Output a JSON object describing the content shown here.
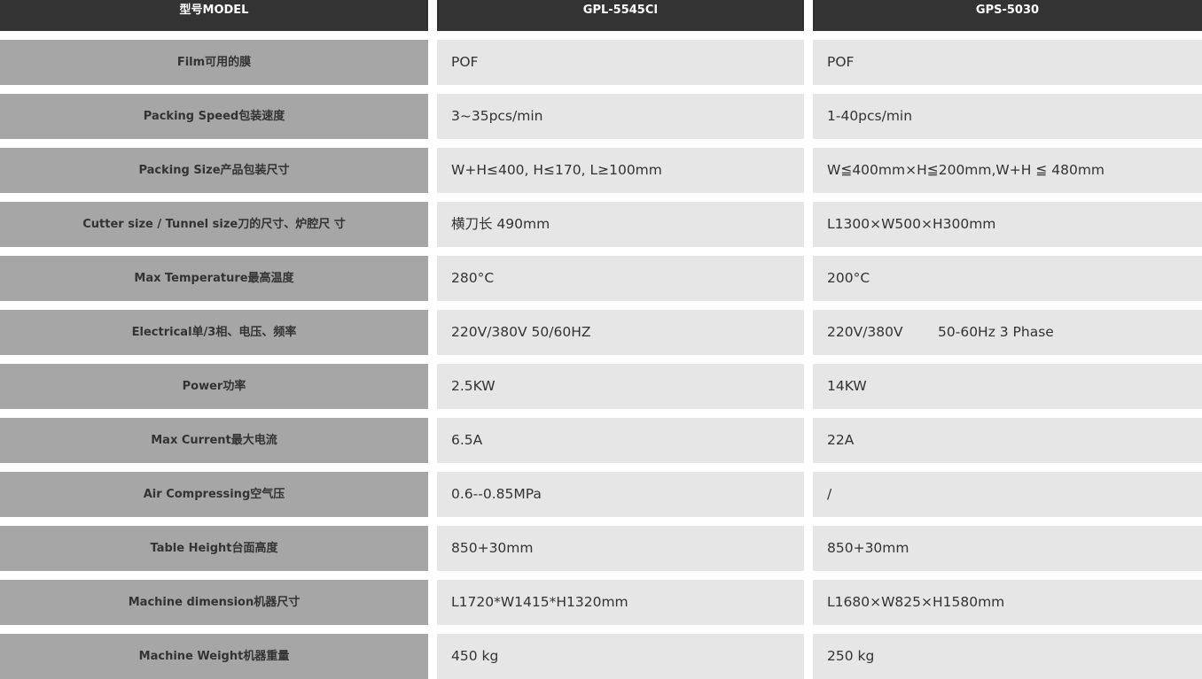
{
  "header": {
    "model_label": "型号MODEL",
    "models": [
      "GPL-5545CI",
      "GPS-5030"
    ]
  },
  "rows": [
    {
      "label": "Film可用的膜",
      "values": [
        "POF",
        "POF"
      ]
    },
    {
      "label": "Packing Speed包装速度",
      "values": [
        "3~35pcs/min",
        "1-40pcs/min"
      ]
    },
    {
      "label": "Packing Size产品包装尺寸",
      "values": [
        "W+H≤400, H≤170, L≥100mm",
        "W≦400mm×H≦200mm,W+H ≦ 480mm"
      ]
    },
    {
      "label": "Cutter size / Tunnel size刀的尺寸、炉腔尺 寸",
      "values": [
        "横刀长 490mm",
        "L1300×W500×H300mm"
      ]
    },
    {
      "label": "Max Temperature最高温度",
      "values": [
        "280°C",
        "200°C"
      ]
    },
    {
      "label": "Electrical单/3相、电压、频率",
      "values": [
        "220V/380V 50/60HZ",
        "220V/380V        50-60Hz 3 Phase"
      ]
    },
    {
      "label": "Power功率",
      "values": [
        "2.5KW",
        "14KW"
      ]
    },
    {
      "label": "Max Current最大电流",
      "values": [
        "6.5A",
        "22A"
      ]
    },
    {
      "label": "Air Compressing空气压",
      "values": [
        "0.6--0.85MPa",
        "/"
      ]
    },
    {
      "label": "Table Height台面高度",
      "values": [
        "850+30mm",
        "850+30mm"
      ]
    },
    {
      "label": "Machine dimension机器尺寸",
      "values": [
        "L1720*W1415*H1320mm",
        "L1680×W825×H1580mm"
      ]
    },
    {
      "label": "Machine Weight机器重量",
      "values": [
        "450 kg",
        "250 kg"
      ]
    }
  ]
}
